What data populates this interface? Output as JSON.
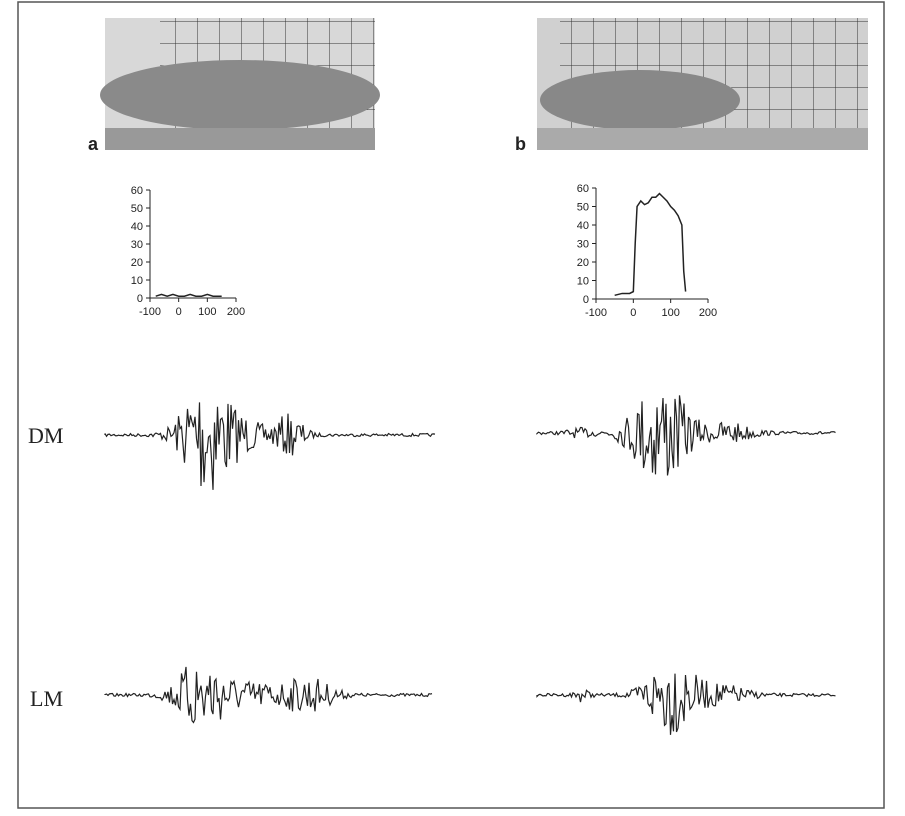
{
  "panel_labels": [
    "a",
    "b"
  ],
  "trace_labels": [
    "DM",
    "LM"
  ],
  "chart_data": [
    {
      "type": "line",
      "color": "#222222",
      "x": [
        -80,
        -60,
        -40,
        -20,
        0,
        20,
        40,
        60,
        80,
        100,
        120,
        140,
        150
      ],
      "values": [
        1,
        2,
        1,
        2,
        1,
        1,
        2,
        1,
        1,
        2,
        1,
        1,
        1
      ],
      "xlim": [
        -100,
        200
      ],
      "xticks": [
        -100,
        0,
        100,
        200
      ],
      "ylim": [
        0,
        60
      ],
      "yticks": [
        0,
        10,
        20,
        30,
        40,
        50,
        60
      ]
    },
    {
      "type": "line",
      "color": "#222222",
      "x": [
        -50,
        -30,
        -10,
        0,
        5,
        10,
        20,
        30,
        40,
        50,
        60,
        70,
        80,
        90,
        100,
        110,
        120,
        130,
        135,
        140
      ],
      "values": [
        2,
        3,
        3,
        4,
        30,
        50,
        53,
        51,
        52,
        55,
        55,
        57,
        55,
        53,
        50,
        48,
        45,
        40,
        15,
        4
      ],
      "xlim": [
        -100,
        200
      ],
      "xticks": [
        -100,
        0,
        100,
        200
      ],
      "ylim": [
        0,
        60
      ],
      "yticks": [
        0,
        10,
        20,
        30,
        40,
        50,
        60
      ]
    }
  ]
}
